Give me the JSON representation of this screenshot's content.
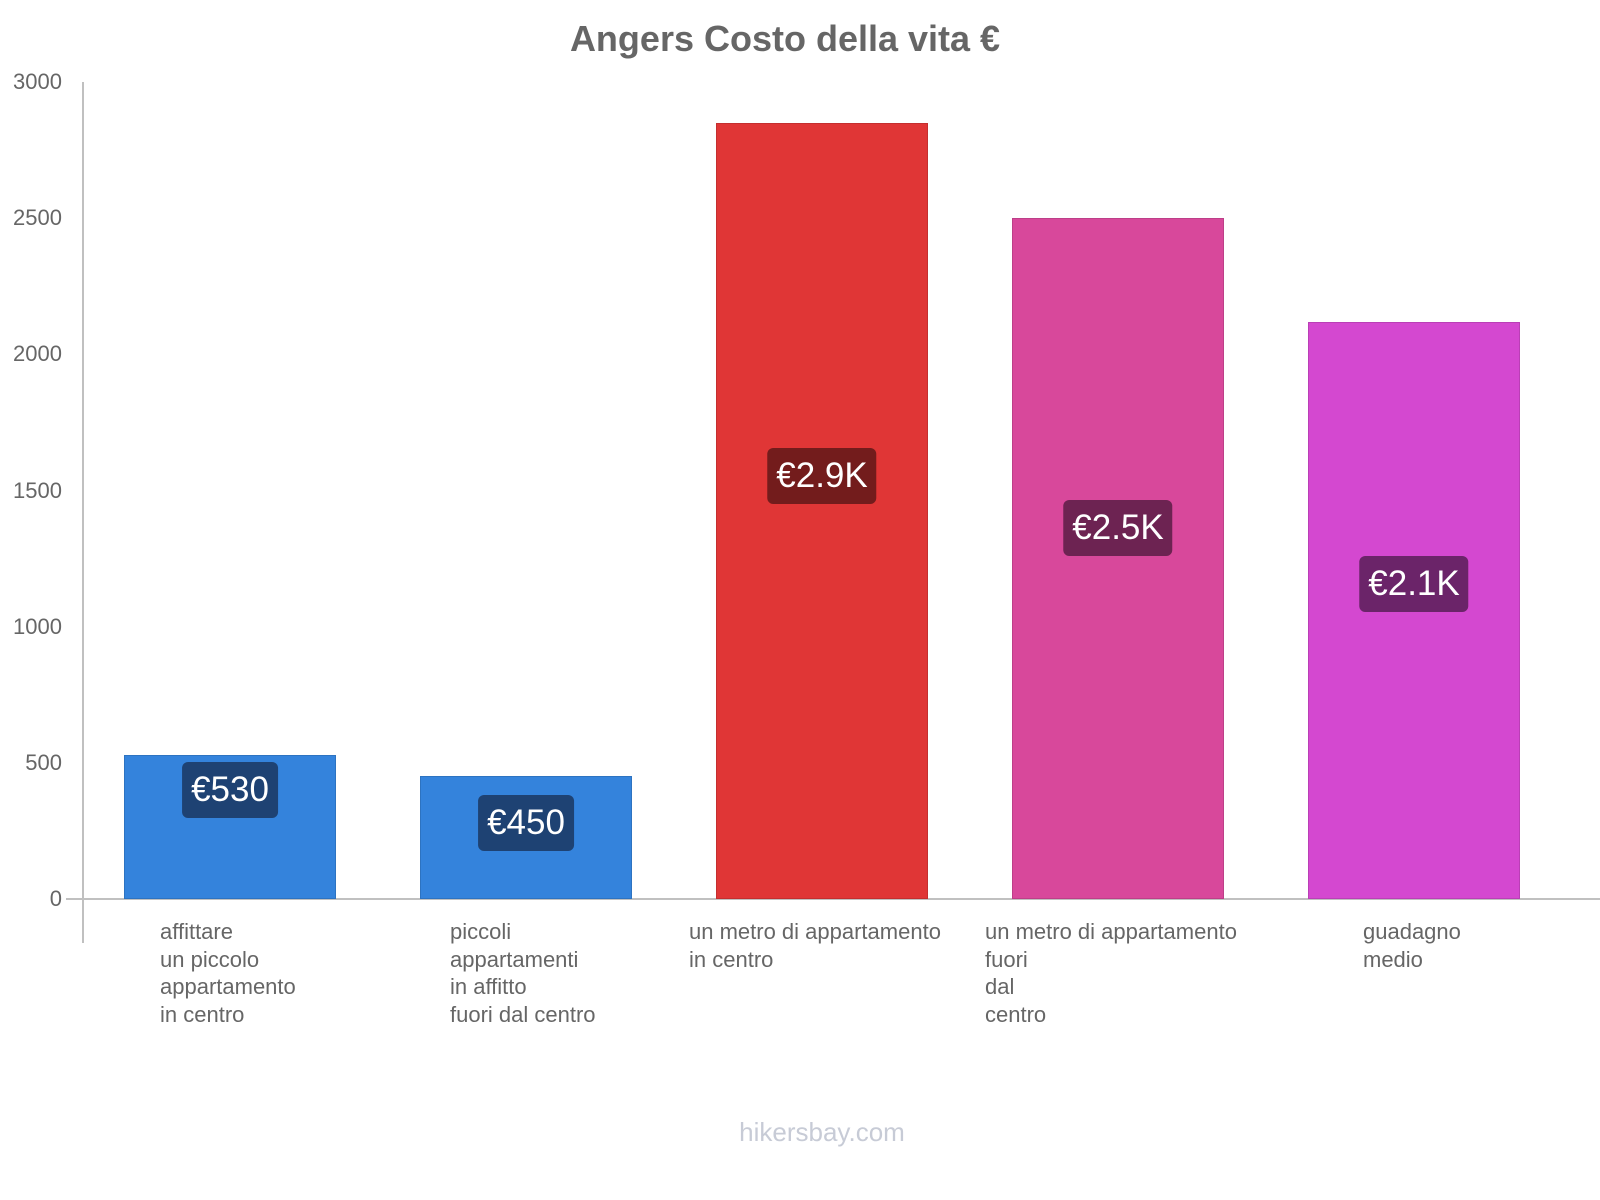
{
  "chart_data": {
    "type": "bar",
    "title": "Angers Costo della vita €",
    "xlabel": "",
    "ylabel": "",
    "ylim": [
      0,
      3000
    ],
    "yticks": [
      "0",
      "500",
      "1000",
      "1500",
      "2000",
      "2500",
      "3000"
    ],
    "grid": false,
    "legend": null,
    "categories": [
      "affittare\nun piccolo\nappartamento\nin centro",
      "piccoli\nappartamenti\nin affitto\nfuori dal centro",
      "un metro di appartamento\nin centro",
      "un metro di appartamento\nfuori\ndal\ncentro",
      "guadagno\nmedio"
    ],
    "values": [
      530,
      450,
      2850,
      2500,
      2120
    ],
    "value_labels": [
      "€530",
      "€450",
      "€2.9K",
      "€2.5K",
      "€2.1K"
    ],
    "colors": [
      "#3483dc",
      "#3483dc",
      "#e03636",
      "#d8489b",
      "#d448d0"
    ],
    "label_bg_colors": [
      "#1e4273",
      "#1e4273",
      "#731c1c",
      "#6d2352",
      "#6b2469"
    ]
  },
  "title": "Angers Costo della vita €",
  "watermark": "hikersbay.com"
}
